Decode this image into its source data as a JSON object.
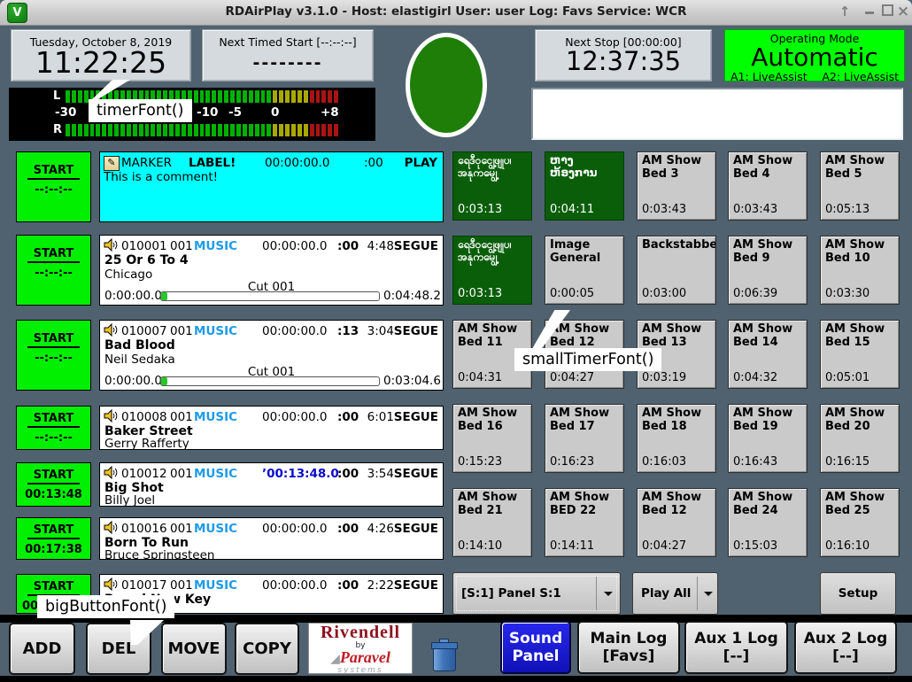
{
  "titlebar": {
    "title": "RDAirPlay v3.1.0 - Host: elastigirl User: user Log: Favs Service: WCR",
    "icon": "rivendell-logo-icon",
    "controls": [
      "shade",
      "minimize",
      "maximize",
      "close"
    ]
  },
  "clock": {
    "date": "Tuesday, October 8, 2019",
    "time": "11:22:25"
  },
  "next_timed_start": {
    "label": "Next Timed Start [--:--:--]",
    "value": "--------"
  },
  "next_stop": {
    "label": "Next Stop [00:00:00]",
    "value": "12:37:35"
  },
  "operating_mode": {
    "label": "Operating Mode",
    "value": "Automatic",
    "a1": "A1: LiveAssist",
    "a2": "A2: LiveAssist",
    "bg_color": "#00ff00"
  },
  "status_circle": {
    "color": "#1e7e08"
  },
  "message_box": {
    "value": ""
  },
  "meter": {
    "channels": [
      "L",
      "R"
    ],
    "scale_ticks": [
      "-30",
      "-10",
      "-5",
      "0",
      "+8"
    ],
    "segments": {
      "green": 34,
      "yellow": 6,
      "red": 5
    },
    "colors": {
      "green": "#00b200",
      "yellow": "#a9a800",
      "red": "#a81414"
    }
  },
  "annotations": {
    "timer": "timerFont()",
    "small_timer": "smallTimerFont()",
    "big_button": "bigButtonFont()"
  },
  "log": {
    "start_label": "START",
    "rows": [
      {
        "kind": "marker",
        "start_time": "--:--:--",
        "bg": "#00ffff",
        "icon": "note-icon",
        "name": "MARKER",
        "label": "LABEL!",
        "time": "00:00:00.0",
        "talk": ":00",
        "trans": "PLAY",
        "comment": "This is a comment!"
      },
      {
        "kind": "audio",
        "variant": "full",
        "start_time": "--:--:--",
        "icon": "speaker-icon",
        "cart": "010001",
        "group": "001",
        "type": "MUSIC",
        "time": "00:00:00.0",
        "talk": ":00",
        "length": "4:48",
        "trans": "SEGUE",
        "title": "25 Or 6 To 4",
        "artist": "Chicago",
        "cut": "Cut 001",
        "elapsed": "0:00:00.0",
        "remaining": "0:04:48.2"
      },
      {
        "kind": "audio",
        "variant": "full",
        "start_time": "--:--:--",
        "icon": "speaker-icon",
        "cart": "010007",
        "group": "001",
        "type": "MUSIC",
        "time": "00:00:00.0",
        "talk": ":13",
        "length": "3:04",
        "trans": "SEGUE",
        "title": "Bad Blood",
        "artist": "Neil Sedaka",
        "cut": "Cut 001",
        "elapsed": "0:00:00.0",
        "remaining": "0:03:04.6"
      },
      {
        "kind": "audio",
        "variant": "short",
        "start_time": "--:--:--",
        "icon": "speaker-icon",
        "cart": "010008",
        "group": "001",
        "type": "MUSIC",
        "time": "00:00:00.0",
        "talk": ":00",
        "length": "6:01",
        "trans": "SEGUE",
        "title": "Baker Street",
        "artist": "Gerry Rafferty"
      },
      {
        "kind": "audio",
        "variant": "short",
        "start_time": "00:13:48",
        "icon": "speaker-icon",
        "cart": "010012",
        "group": "001",
        "type": "MUSIC",
        "time": "00:13:48.0",
        "time_highlight": true,
        "talk": ":00",
        "length": "3:54",
        "trans": "SEGUE",
        "title": "Big Shot",
        "artist": "Billy Joel"
      },
      {
        "kind": "audio",
        "variant": "short",
        "start_time": "00:17:38",
        "icon": "speaker-icon",
        "cart": "010016",
        "group": "001",
        "type": "MUSIC",
        "time": "00:00:00.0",
        "talk": ":00",
        "length": "4:26",
        "trans": "SEGUE",
        "title": "Born To Run",
        "artist": "Bruce Springsteen"
      },
      {
        "kind": "audio",
        "variant": "clipped",
        "start_time": "00:",
        "icon": "speaker-icon",
        "cart": "010017",
        "group": "001",
        "type": "MUSIC",
        "time": "00:00:00.0",
        "talk": ":00",
        "length": "2:22",
        "trans": "SEGUE",
        "title": "Brand New Key",
        "artist": ""
      }
    ]
  },
  "sound_panel": {
    "buttons": [
      {
        "label": "ရေဒီဝုငျွေ့ဖျုပ၊ အနုကမျွေ့",
        "time": "0:03:13",
        "color": "green"
      },
      {
        "label": "ຫາງຫ້ອງການ",
        "time": "0:04:11",
        "color": "green"
      },
      {
        "label": "AM Show Bed 3",
        "time": "0:03:43",
        "color": "gray"
      },
      {
        "label": "AM Show Bed 4",
        "time": "0:03:43",
        "color": "gray"
      },
      {
        "label": "AM Show Bed 5",
        "time": "0:05:13",
        "color": "gray"
      },
      {
        "label": "ရေဒီဝုငျွေ့ဖျုပ၊ အနုကမျွေ့",
        "time": "0:03:13",
        "color": "green"
      },
      {
        "label": "Image General",
        "time": "0:00:05",
        "color": "gray"
      },
      {
        "label": "Backstabber",
        "time": "0:03:00",
        "color": "gray"
      },
      {
        "label": "AM Show Bed 9",
        "time": "0:06:39",
        "color": "gray"
      },
      {
        "label": "AM Show Bed 10",
        "time": "0:03:30",
        "color": "gray"
      },
      {
        "label": "AM Show Bed 11",
        "time": "0:04:31",
        "color": "gray"
      },
      {
        "label": "AM Show Bed 12",
        "time": "0:04:27",
        "color": "gray"
      },
      {
        "label": "AM Show Bed 13",
        "time": "0:03:19",
        "color": "gray"
      },
      {
        "label": "AM Show Bed 14",
        "time": "0:04:32",
        "color": "gray"
      },
      {
        "label": "AM Show Bed 15",
        "time": "0:05:01",
        "color": "gray"
      },
      {
        "label": "AM Show Bed 16",
        "time": "0:15:23",
        "color": "gray"
      },
      {
        "label": "AM Show Bed 17",
        "time": "0:16:23",
        "color": "gray"
      },
      {
        "label": "AM Show Bed 18",
        "time": "0:16:03",
        "color": "gray"
      },
      {
        "label": "AM Show Bed 19",
        "time": "0:16:43",
        "color": "gray"
      },
      {
        "label": "AM Show Bed 20",
        "time": "0:16:15",
        "color": "gray"
      },
      {
        "label": "AM Show Bed 21",
        "time": "0:14:10",
        "color": "gray"
      },
      {
        "label": "AM Show BED 22",
        "time": "0:14:11",
        "color": "gray"
      },
      {
        "label": "AM Show Bed 12",
        "time": "0:04:27",
        "color": "gray"
      },
      {
        "label": "AM Show Bed 24",
        "time": "0:15:03",
        "color": "gray"
      },
      {
        "label": "AM Show Bed 25",
        "time": "0:16:10",
        "color": "gray"
      }
    ],
    "panel_selector": {
      "value": "[S:1] Panel S:1"
    },
    "play_mode": {
      "value": "Play All"
    },
    "setup_label": "Setup"
  },
  "bottom_bar": {
    "edit_buttons": [
      "ADD",
      "DEL",
      "MOVE",
      "COPY"
    ],
    "logo": {
      "title": "Rivendell",
      "by": "by",
      "brand": "Paravel",
      "brand2": "systems"
    },
    "trash": "trash-icon",
    "sound_panel_button": [
      "Sound",
      "Panel"
    ],
    "main_log_button": [
      "Main Log",
      "[Favs]"
    ],
    "aux1_log_button": [
      "Aux 1 Log",
      "[--]"
    ],
    "aux2_log_button": [
      "Aux 2 Log",
      "[--]"
    ]
  }
}
